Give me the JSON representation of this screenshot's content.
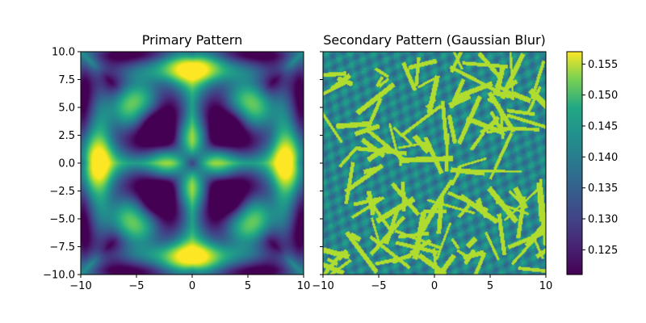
{
  "chart_data": [
    {
      "type": "heatmap",
      "title": "Primary Pattern",
      "xlim": [
        -10,
        10
      ],
      "ylim": [
        -10,
        10
      ],
      "x_ticks": [
        -10,
        -5,
        0,
        5,
        10
      ],
      "x_tick_labels": [
        "−10",
        "−5",
        "0",
        "5",
        "10"
      ],
      "y_ticks": [
        10.0,
        7.5,
        5.0,
        2.5,
        0.0,
        -2.5,
        -5.0,
        -7.5,
        -10.0
      ],
      "y_tick_labels": [
        "10.0",
        "7.5",
        "5.0",
        "2.5",
        "0.0",
        "−2.5",
        "−5.0",
        "−7.5",
        "−10.0"
      ],
      "colormap": "viridis",
      "grid": false
    },
    {
      "type": "heatmap",
      "title": "Secondary Pattern (Gaussian Blur)",
      "xlim": [
        -10,
        10
      ],
      "ylim": [
        -10,
        10
      ],
      "x_ticks": [
        -10,
        -5,
        0,
        5,
        10
      ],
      "x_tick_labels": [
        "−10",
        "−5",
        "0",
        "5",
        "10"
      ],
      "y_ticks": [
        10.0,
        7.5,
        5.0,
        2.5,
        0.0,
        -2.5,
        -5.0,
        -7.5,
        -10.0
      ],
      "y_tick_labels": [
        "",
        "",
        "",
        "",
        "",
        "",
        "",
        "",
        ""
      ],
      "colormap": "viridis",
      "grid": false
    }
  ],
  "colorbar": {
    "vmin": 0.121,
    "vmax": 0.157,
    "ticks": [
      0.125,
      0.13,
      0.135,
      0.14,
      0.145,
      0.15,
      0.155
    ],
    "tick_labels": [
      "0.125",
      "0.130",
      "0.135",
      "0.140",
      "0.145",
      "0.150",
      "0.155"
    ]
  }
}
